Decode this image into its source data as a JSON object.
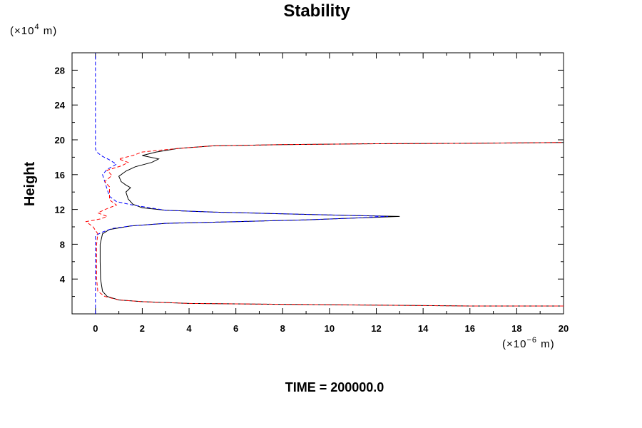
{
  "chart_data": {
    "type": "line",
    "title": "Stability",
    "ylabel": "Height",
    "xlabel": "",
    "y_unit": {
      "prefix": "(×10",
      "exponent": "4",
      "suffix": " m)"
    },
    "x_unit": {
      "prefix": "(×10",
      "exponent": "−6",
      "suffix": " m)"
    },
    "footer": "TIME = 200000.0",
    "xlim": [
      -1,
      20
    ],
    "ylim": [
      0,
      30
    ],
    "x_ticks": [
      0,
      2,
      4,
      6,
      8,
      10,
      12,
      14,
      16,
      18,
      20
    ],
    "y_ticks": [
      4,
      8,
      12,
      16,
      20,
      24,
      28
    ],
    "grid": false,
    "series": [
      {
        "color": "#000000",
        "dash": "solid",
        "points": [
          [
            20,
            0.9
          ],
          [
            16,
            0.9
          ],
          [
            12,
            1.0
          ],
          [
            8,
            1.1
          ],
          [
            4,
            1.2
          ],
          [
            2,
            1.4
          ],
          [
            1,
            1.6
          ],
          [
            0.5,
            2.0
          ],
          [
            0.3,
            2.6
          ],
          [
            0.22,
            4
          ],
          [
            0.2,
            6
          ],
          [
            0.2,
            8
          ],
          [
            0.3,
            9.2
          ],
          [
            0.6,
            9.7
          ],
          [
            1.5,
            10.1
          ],
          [
            3,
            10.4
          ],
          [
            6,
            10.6
          ],
          [
            9,
            10.8
          ],
          [
            11,
            11.0
          ],
          [
            13,
            11.2
          ],
          [
            11,
            11.3
          ],
          [
            8,
            11.5
          ],
          [
            5,
            11.7
          ],
          [
            3,
            11.9
          ],
          [
            2,
            12.2
          ],
          [
            1.6,
            12.6
          ],
          [
            1.4,
            13.2
          ],
          [
            1.3,
            14.0
          ],
          [
            1.5,
            14.5
          ],
          [
            1.3,
            14.8
          ],
          [
            1.1,
            15.2
          ],
          [
            1.0,
            15.8
          ],
          [
            1.3,
            16.4
          ],
          [
            1.7,
            16.9
          ],
          [
            2.4,
            17.4
          ],
          [
            2.7,
            17.8
          ],
          [
            2.0,
            18.2
          ],
          [
            2.6,
            18.6
          ],
          [
            3.5,
            19.0
          ],
          [
            5,
            19.3
          ],
          [
            8,
            19.45
          ],
          [
            12,
            19.55
          ],
          [
            16,
            19.6
          ],
          [
            20,
            19.7
          ]
        ]
      },
      {
        "color": "#0000ff",
        "dash": "dashed",
        "points": [
          [
            0,
            0
          ],
          [
            0,
            2
          ],
          [
            0,
            4
          ],
          [
            0,
            6
          ],
          [
            0,
            8
          ],
          [
            0,
            9.0
          ],
          [
            0.3,
            9.4
          ],
          [
            0.7,
            9.8
          ],
          [
            1.5,
            10.1
          ],
          [
            3,
            10.4
          ],
          [
            6,
            10.6
          ],
          [
            9,
            10.8
          ],
          [
            11,
            11.0
          ],
          [
            12.5,
            11.2
          ],
          [
            11,
            11.3
          ],
          [
            8,
            11.5
          ],
          [
            5,
            11.7
          ],
          [
            3,
            11.9
          ],
          [
            2.3,
            12.2
          ],
          [
            1.6,
            12.5
          ],
          [
            0.9,
            12.9
          ],
          [
            0.6,
            13.5
          ],
          [
            0.5,
            14.3
          ],
          [
            0.4,
            15.2
          ],
          [
            0.3,
            16.0
          ],
          [
            0.5,
            16.6
          ],
          [
            0.9,
            17.2
          ],
          [
            0.6,
            17.7
          ],
          [
            0.3,
            18.1
          ],
          [
            0.05,
            18.6
          ],
          [
            0,
            19
          ],
          [
            0,
            22
          ],
          [
            0,
            26
          ],
          [
            0,
            30
          ]
        ]
      },
      {
        "color": "#ff0000",
        "dash": "dashed",
        "points": [
          [
            20,
            0.9
          ],
          [
            16,
            0.9
          ],
          [
            12,
            1.0
          ],
          [
            8,
            1.1
          ],
          [
            4,
            1.2
          ],
          [
            2,
            1.4
          ],
          [
            1,
            1.6
          ],
          [
            0.4,
            2.0
          ],
          [
            0.1,
            2.6
          ],
          [
            0.05,
            4
          ],
          [
            0.05,
            6
          ],
          [
            0.05,
            8
          ],
          [
            0.1,
            9.2
          ],
          [
            -0.1,
            10.0
          ],
          [
            -0.4,
            10.6
          ],
          [
            0.2,
            10.9
          ],
          [
            0.5,
            11.2
          ],
          [
            0.1,
            11.6
          ],
          [
            0.5,
            12.1
          ],
          [
            0.9,
            12.5
          ],
          [
            0.6,
            13.1
          ],
          [
            0.6,
            13.8
          ],
          [
            0.6,
            14.6
          ],
          [
            0.4,
            15.2
          ],
          [
            0.7,
            15.9
          ],
          [
            0.5,
            16.5
          ],
          [
            1.1,
            17.0
          ],
          [
            1.4,
            17.4
          ],
          [
            1.0,
            17.8
          ],
          [
            1.6,
            18.2
          ],
          [
            2.0,
            18.6
          ],
          [
            3.5,
            19.0
          ],
          [
            5,
            19.3
          ],
          [
            8,
            19.45
          ],
          [
            12,
            19.55
          ],
          [
            16,
            19.6
          ],
          [
            20,
            19.7
          ]
        ]
      }
    ]
  }
}
